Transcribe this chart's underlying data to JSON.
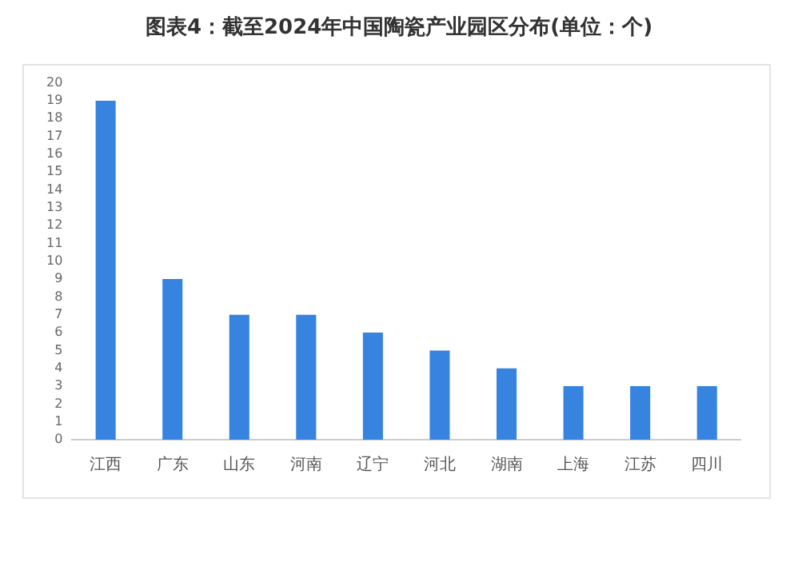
{
  "chart_data": {
    "type": "bar",
    "title": "图表4：截至2024年中国陶瓷产业园区分布(单位：个)",
    "categories": [
      "江西",
      "广东",
      "山东",
      "河南",
      "辽宁",
      "河北",
      "湖南",
      "上海",
      "江苏",
      "四川"
    ],
    "values": [
      19,
      9,
      7,
      7,
      6,
      5,
      4,
      3,
      3,
      3
    ],
    "color": "#3683e0",
    "ylim": [
      0,
      20
    ],
    "yticks": [
      0,
      1,
      2,
      3,
      4,
      5,
      6,
      7,
      8,
      9,
      10,
      11,
      12,
      13,
      14,
      15,
      16,
      17,
      18,
      19,
      20
    ],
    "grid": false,
    "legend": false
  }
}
